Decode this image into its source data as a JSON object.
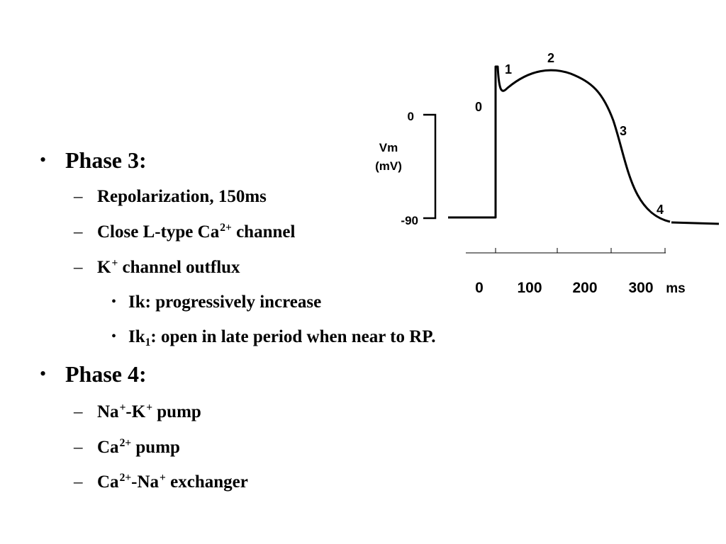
{
  "bullets": {
    "phase3": {
      "title": "Phase 3:",
      "repolarization": "Repolarization, 150ms",
      "close_prefix": "Close L-type Ca",
      "close_sup": "2+",
      "close_suffix": " channel",
      "k_prefix": "K",
      "k_sup": "+",
      "k_suffix": " channel outflux",
      "ik": "Ik: progressively increase",
      "ik1_prefix": "Ik",
      "ik1_sub": "1",
      "ik1_suffix": ": open in late period when near to RP."
    },
    "phase4": {
      "title": "Phase 4:",
      "nak_na": "Na",
      "nak_na_sup": "+",
      "nak_dash": "-K",
      "nak_k_sup": "+",
      "nak_suffix": " pump",
      "ca_prefix": "Ca",
      "ca_sup": "2+",
      "ca_suffix": " pump",
      "exch_prefix": "Ca",
      "exch_ca_sup": "2+",
      "exch_mid": "-Na",
      "exch_na_sup": "+",
      "exch_suffix": " exchanger"
    }
  },
  "graph": {
    "y_axis_title_line1": "Vm",
    "y_axis_title_line2": "(mV)",
    "y_tick_top": "0",
    "y_tick_bottom": "-90",
    "x_ticks": [
      "0",
      "100",
      "200",
      "300"
    ],
    "x_unit": "ms",
    "phase_labels": [
      "0",
      "1",
      "2",
      "3",
      "4"
    ]
  }
}
